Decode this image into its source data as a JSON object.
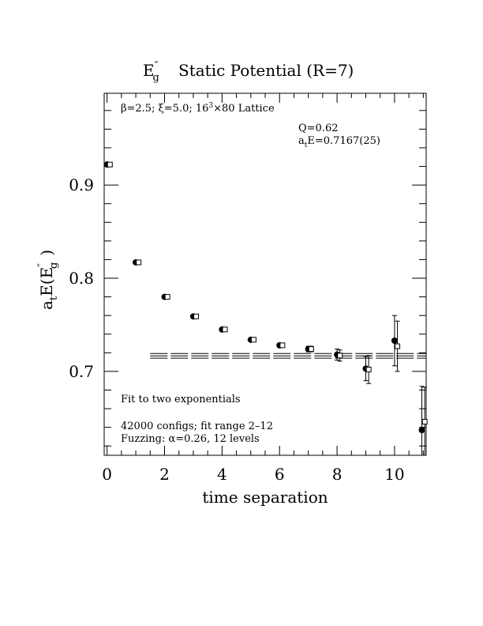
{
  "chart_data": {
    "type": "scatter",
    "title_base": "E",
    "title_sup": "″",
    "title_sub": "g",
    "title_rest": "Static Potential (R=7)",
    "xlabel": "time separation",
    "ylabel_a": "a",
    "ylabel_t": "t",
    "ylabel_e": "E(E",
    "ylabel_sup": "″",
    "ylabel_sub": "g",
    "ylabel_close": ")",
    "xlim": [
      -0.1,
      11.1
    ],
    "ylim": [
      0.61,
      0.9985
    ],
    "x_ticks": [
      0,
      2,
      4,
      6,
      8,
      10
    ],
    "x_tick_labels": [
      "0",
      "2",
      "4",
      "6",
      "8",
      "10"
    ],
    "y_ticks": [
      0.7,
      0.8,
      0.9
    ],
    "y_tick_labels": [
      "0.7",
      "0.8",
      "0.9"
    ],
    "annotations": {
      "lattice_beta": "β=2.5; ",
      "lattice_xi": "ξ=5.0; 16",
      "lattice_sup": "3",
      "lattice_rest": "×80 Lattice",
      "q_value": "Q=0.62",
      "energy_a": "a",
      "energy_t": "t",
      "energy_rest": "E=0.7167(25)",
      "fit_type": "Fit to two exponentials",
      "configs": "42000 configs; fit range 2–12",
      "fuzzing": "Fuzzing: α=0.26, 12 levels"
    },
    "fit": {
      "x_range": [
        1.5,
        11.1
      ],
      "value": 0.7167,
      "error": 0.0025
    },
    "series": [
      {
        "marker": "filled-circle",
        "x": [
          0,
          1,
          2,
          3,
          4,
          5,
          6,
          7,
          8,
          9,
          10,
          10.95
        ],
        "y": [
          0.922,
          0.817,
          0.78,
          0.759,
          0.745,
          0.734,
          0.728,
          0.724,
          0.718,
          0.703,
          0.733,
          0.637
        ],
        "err": [
          0.001,
          0.001,
          0.001,
          0.001,
          0.001,
          0.0015,
          0.002,
          0.003,
          0.006,
          0.013,
          0.027,
          0.047
        ]
      },
      {
        "marker": "open-square",
        "x": [
          0.1,
          1.1,
          2.1,
          3.1,
          4.1,
          5.1,
          6.1,
          7.1,
          8.1,
          9.1,
          10.1,
          11.05
        ],
        "y": [
          0.922,
          0.817,
          0.78,
          0.759,
          0.745,
          0.734,
          0.728,
          0.724,
          0.717,
          0.702,
          0.727,
          0.646
        ],
        "err": [
          0.001,
          0.001,
          0.001,
          0.001,
          0.001,
          0.0015,
          0.002,
          0.003,
          0.006,
          0.015,
          0.027,
          0.037
        ]
      }
    ]
  }
}
